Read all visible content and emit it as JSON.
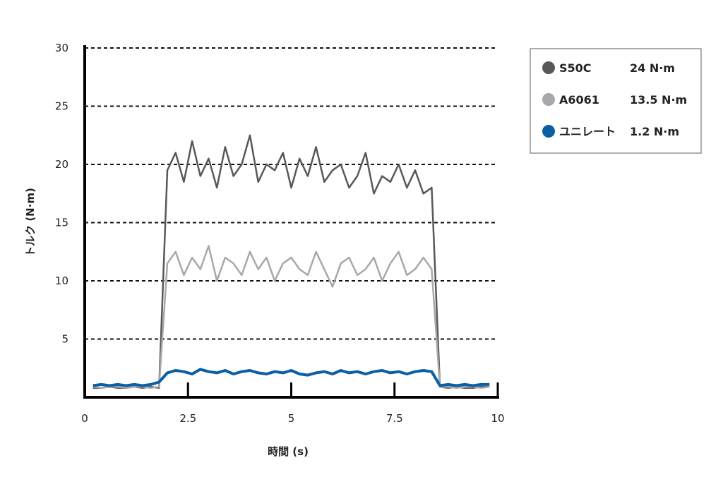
{
  "chart_data": {
    "type": "line",
    "title": "",
    "xlabel": "時間 (s)",
    "ylabel": "トルク (N·m)",
    "xlim": [
      0,
      10
    ],
    "ylim": [
      0,
      30
    ],
    "xticks": [
      "0",
      "2.5",
      "5",
      "7.5",
      "10"
    ],
    "yticks": [
      "5",
      "10",
      "15",
      "20",
      "25",
      "30"
    ],
    "grid": "horizontal dashed",
    "legend_position": "top-right",
    "x": [
      0.2,
      0.4,
      0.6,
      0.8,
      1.0,
      1.2,
      1.4,
      1.6,
      1.8,
      2.0,
      2.2,
      2.4,
      2.6,
      2.8,
      3.0,
      3.2,
      3.4,
      3.6,
      3.8,
      4.0,
      4.2,
      4.4,
      4.6,
      4.8,
      5.0,
      5.2,
      5.4,
      5.6,
      5.8,
      6.0,
      6.2,
      6.4,
      6.6,
      6.8,
      7.0,
      7.2,
      7.4,
      7.6,
      7.8,
      8.0,
      8.2,
      8.4,
      8.6,
      8.8,
      9.0,
      9.2,
      9.4,
      9.6,
      9.8
    ],
    "series": [
      {
        "name": "S50C",
        "legend_value": "24 N·m",
        "color": "#58585a",
        "values": [
          0.8,
          0.8,
          0.9,
          0.8,
          0.8,
          0.9,
          0.8,
          0.9,
          0.8,
          19.5,
          21,
          18.5,
          22,
          19,
          20.5,
          18,
          21.5,
          19,
          20,
          22.5,
          18.5,
          20,
          19.5,
          21,
          18,
          20.5,
          19,
          21.5,
          18.5,
          19.5,
          20,
          18,
          19,
          21,
          17.5,
          19,
          18.5,
          20,
          18,
          19.5,
          17.5,
          18,
          0.9,
          0.8,
          0.9,
          0.8,
          0.8,
          0.9,
          0.9
        ]
      },
      {
        "name": "A6061",
        "legend_value": "13.5 N·m",
        "color": "#a7a8ab",
        "values": [
          0.9,
          0.8,
          0.9,
          0.9,
          0.8,
          0.9,
          0.9,
          0.8,
          0.9,
          11.5,
          12.5,
          10.5,
          12,
          11,
          13,
          10,
          12,
          11.5,
          10.5,
          12.5,
          11,
          12,
          10,
          11.5,
          12,
          11,
          10.5,
          12.5,
          11,
          9.5,
          11.5,
          12,
          10.5,
          11,
          12,
          10,
          11.5,
          12.5,
          10.5,
          11,
          12,
          11,
          0.9,
          0.9,
          0.8,
          0.9,
          0.9,
          0.8,
          0.9
        ]
      },
      {
        "name": "ユニレート",
        "legend_value": "1.2 N·m",
        "color": "#0b5fa5",
        "values": [
          1.0,
          1.1,
          1.0,
          1.1,
          1.0,
          1.1,
          1.0,
          1.1,
          1.3,
          2.1,
          2.3,
          2.2,
          2.0,
          2.4,
          2.2,
          2.1,
          2.3,
          2.0,
          2.2,
          2.3,
          2.1,
          2.0,
          2.2,
          2.1,
          2.3,
          2.0,
          1.9,
          2.1,
          2.2,
          2.0,
          2.3,
          2.1,
          2.2,
          2.0,
          2.2,
          2.3,
          2.1,
          2.2,
          2.0,
          2.2,
          2.3,
          2.2,
          1.0,
          1.1,
          1.0,
          1.1,
          1.0,
          1.1,
          1.1
        ]
      }
    ]
  }
}
